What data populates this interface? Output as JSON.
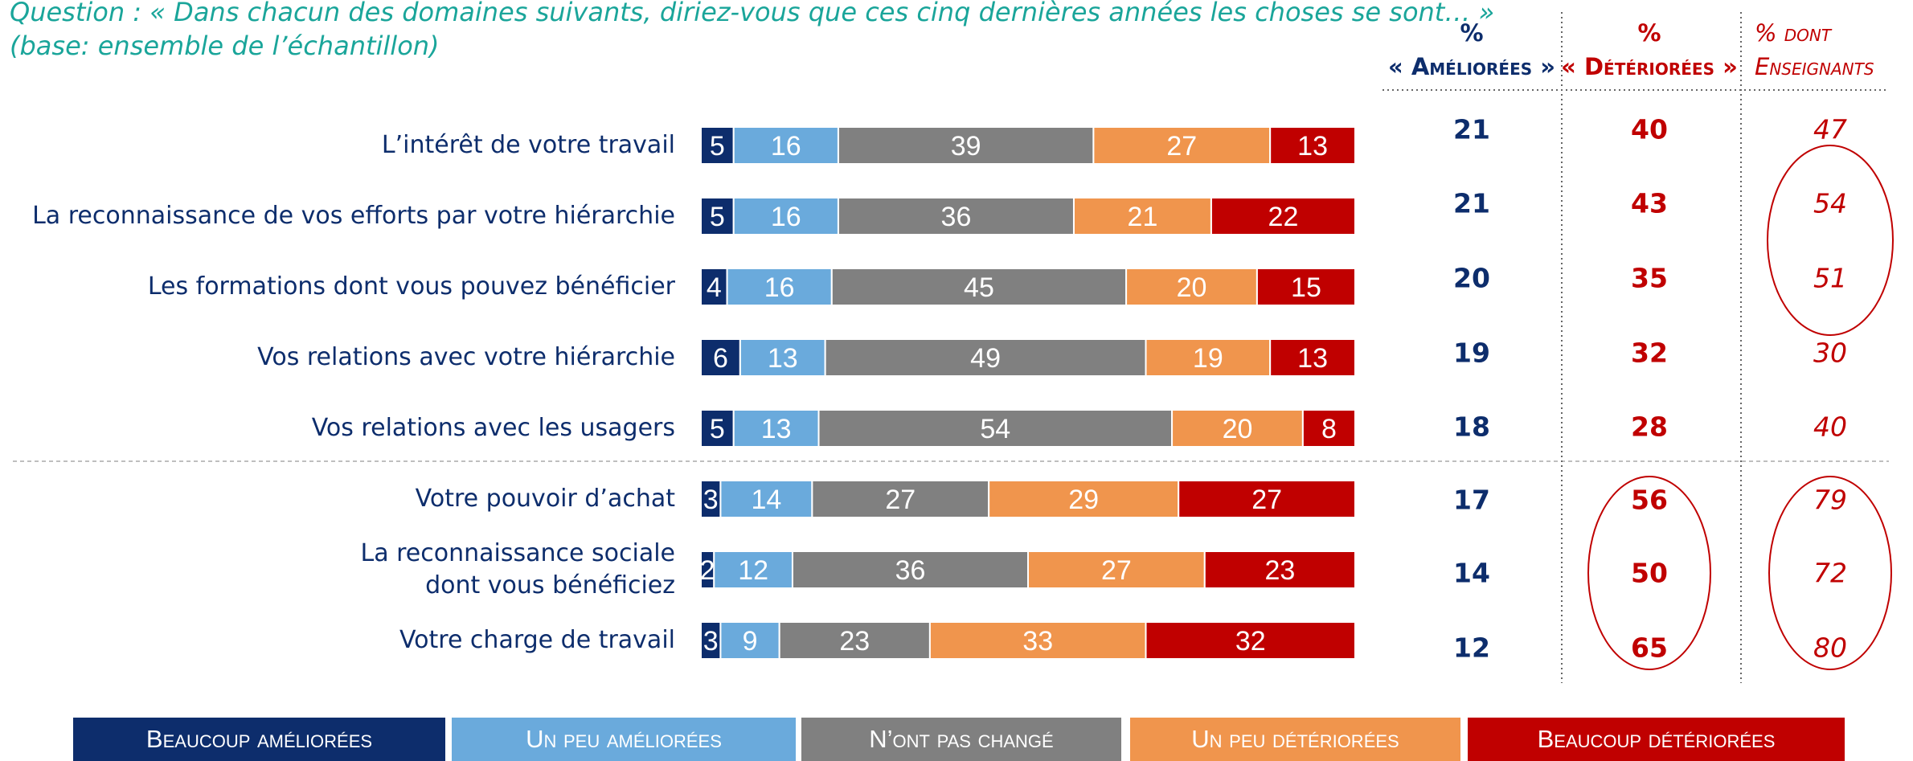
{
  "chart_data": {
    "type": "bar",
    "orientation": "horizontal",
    "stacked": true,
    "title": "Question : « Dans chacun des domaines suivants, diriez-vous que ces cinq dernières années les choses se sont… »",
    "subtitle": "(base: ensemble de l’échantillon)",
    "categories": [
      "L’intérêt de votre travail",
      "La reconnaissance de vos efforts par votre hiérarchie",
      "Les formations dont vous pouvez bénéficier",
      "Vos relations avec votre hiérarchie",
      "Vos relations avec les usagers",
      "Votre pouvoir d’achat",
      "La reconnaissance sociale\ndont vous bénéficiez",
      "Votre charge de travail"
    ],
    "xlim": [
      0,
      100
    ],
    "series": [
      {
        "name": "Beaucoup améliorées",
        "color": "#0d2d6c",
        "values": [
          5,
          5,
          4,
          6,
          5,
          3,
          2,
          3
        ]
      },
      {
        "name": "Un peu améliorées",
        "color": "#6aaadc",
        "values": [
          16,
          16,
          16,
          13,
          13,
          14,
          12,
          9
        ]
      },
      {
        "name": "N’ont pas changé",
        "color": "#808080",
        "values": [
          39,
          36,
          45,
          49,
          54,
          27,
          36,
          23
        ]
      },
      {
        "name": "Un peu détériorées",
        "color": "#f0954d",
        "values": [
          27,
          21,
          20,
          19,
          20,
          29,
          27,
          33
        ]
      },
      {
        "name": "Beaucoup détériorées",
        "color": "#c00000",
        "values": [
          13,
          22,
          15,
          13,
          8,
          27,
          23,
          32
        ]
      }
    ],
    "columns": [
      {
        "header": [
          "%",
          "« Améliorées »"
        ],
        "color": "#0d2d6c",
        "values": [
          21,
          21,
          20,
          19,
          18,
          17,
          14,
          12
        ]
      },
      {
        "header": [
          "%",
          "« Détériorées »"
        ],
        "color": "#c00000",
        "values": [
          40,
          43,
          35,
          32,
          28,
          56,
          50,
          65
        ]
      },
      {
        "header": [
          "% dont",
          "Enseignants"
        ],
        "color": "#c00000",
        "values": [
          47,
          54,
          51,
          30,
          40,
          79,
          72,
          80
        ]
      }
    ]
  }
}
